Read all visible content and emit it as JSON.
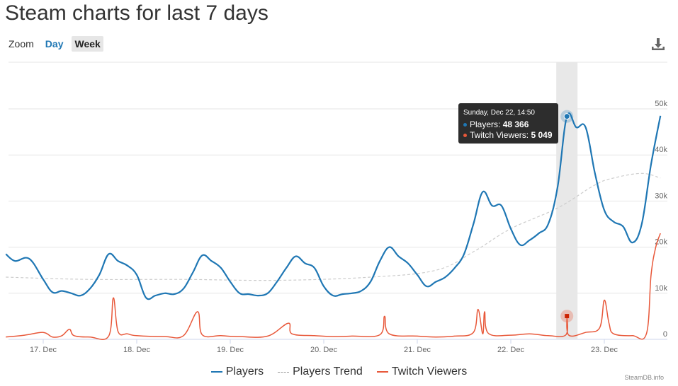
{
  "page": {
    "title": "Steam charts for last 7 days"
  },
  "zoom": {
    "label": "Zoom",
    "options": [
      "Day",
      "Week"
    ],
    "selected": "Week"
  },
  "toolbar": {
    "download_icon": "download-icon"
  },
  "tooltip": {
    "title": "Sunday, Dec 22, 14:50",
    "players_label": "Players: ",
    "players_value": "48 366",
    "twitch_label": "Twitch Viewers: ",
    "twitch_value": "5 049"
  },
  "credit": "SteamDB.info",
  "colors": {
    "players": "#1f77b4",
    "trend": "#cccccc",
    "twitch": "#e8583a",
    "highlight": "#e8e8e8"
  },
  "chart_data": {
    "type": "line",
    "x_tick_labels": [
      "17. Dec",
      "18. Dec",
      "19. Dec",
      "20. Dec",
      "21. Dec",
      "22. Dec",
      "23. Dec"
    ],
    "y_tick_labels": [
      "0",
      "10k",
      "20k",
      "30k",
      "40k",
      "50k"
    ],
    "ylim": [
      0,
      50000
    ],
    "grid": true,
    "legend_placement": "bottom",
    "highlight_x": 5.6,
    "series": [
      {
        "name": "Players",
        "points": [
          [
            -0.4,
            18500
          ],
          [
            -0.3,
            17000
          ],
          [
            -0.15,
            17500
          ],
          [
            0,
            13000
          ],
          [
            0.1,
            10200
          ],
          [
            0.2,
            10500
          ],
          [
            0.3,
            10000
          ],
          [
            0.4,
            9500
          ],
          [
            0.5,
            11000
          ],
          [
            0.6,
            14000
          ],
          [
            0.7,
            18500
          ],
          [
            0.8,
            17000
          ],
          [
            0.9,
            16000
          ],
          [
            1.0,
            14000
          ],
          [
            1.1,
            9000
          ],
          [
            1.2,
            9500
          ],
          [
            1.3,
            10000
          ],
          [
            1.4,
            9800
          ],
          [
            1.5,
            11000
          ],
          [
            1.6,
            14500
          ],
          [
            1.7,
            18200
          ],
          [
            1.8,
            17000
          ],
          [
            1.9,
            15500
          ],
          [
            2.0,
            12500
          ],
          [
            2.1,
            10000
          ],
          [
            2.2,
            9800
          ],
          [
            2.3,
            9500
          ],
          [
            2.4,
            10000
          ],
          [
            2.5,
            12500
          ],
          [
            2.6,
            15500
          ],
          [
            2.7,
            18000
          ],
          [
            2.8,
            16500
          ],
          [
            2.9,
            15500
          ],
          [
            3.0,
            11500
          ],
          [
            3.1,
            9500
          ],
          [
            3.2,
            9800
          ],
          [
            3.3,
            10000
          ],
          [
            3.4,
            10500
          ],
          [
            3.5,
            12500
          ],
          [
            3.6,
            17000
          ],
          [
            3.7,
            20000
          ],
          [
            3.8,
            18000
          ],
          [
            3.9,
            16500
          ],
          [
            4.0,
            14000
          ],
          [
            4.1,
            11500
          ],
          [
            4.2,
            12500
          ],
          [
            4.3,
            13500
          ],
          [
            4.4,
            15500
          ],
          [
            4.5,
            18500
          ],
          [
            4.6,
            25000
          ],
          [
            4.7,
            32000
          ],
          [
            4.8,
            29000
          ],
          [
            4.9,
            29000
          ],
          [
            5.0,
            24000
          ],
          [
            5.1,
            20500
          ],
          [
            5.2,
            21500
          ],
          [
            5.3,
            23000
          ],
          [
            5.4,
            25000
          ],
          [
            5.5,
            33000
          ],
          [
            5.6,
            48366
          ],
          [
            5.7,
            46000
          ],
          [
            5.8,
            46000
          ],
          [
            5.9,
            36000
          ],
          [
            6.0,
            28000
          ],
          [
            6.1,
            25500
          ],
          [
            6.2,
            24500
          ],
          [
            6.3,
            21000
          ],
          [
            6.4,
            25000
          ],
          [
            6.5,
            38000
          ],
          [
            6.6,
            48500
          ]
        ]
      },
      {
        "name": "Players Trend",
        "points": [
          [
            -0.4,
            13500
          ],
          [
            0.5,
            13000
          ],
          [
            1.5,
            13000
          ],
          [
            2.5,
            12800
          ],
          [
            3.5,
            13500
          ],
          [
            4.2,
            15000
          ],
          [
            4.6,
            19000
          ],
          [
            5.0,
            24000
          ],
          [
            5.5,
            28500
          ],
          [
            5.9,
            33500
          ],
          [
            6.1,
            35000
          ],
          [
            6.4,
            36000
          ],
          [
            6.6,
            35000
          ]
        ]
      },
      {
        "name": "Twitch Viewers",
        "points": [
          [
            -0.4,
            500
          ],
          [
            -0.2,
            900
          ],
          [
            0,
            1500
          ],
          [
            0.1,
            500
          ],
          [
            0.2,
            800
          ],
          [
            0.28,
            2200
          ],
          [
            0.33,
            800
          ],
          [
            0.5,
            500
          ],
          [
            0.7,
            700
          ],
          [
            0.75,
            9000
          ],
          [
            0.8,
            1700
          ],
          [
            0.9,
            1200
          ],
          [
            1.0,
            800
          ],
          [
            1.3,
            600
          ],
          [
            1.5,
            800
          ],
          [
            1.65,
            6000
          ],
          [
            1.7,
            1000
          ],
          [
            1.9,
            800
          ],
          [
            2.1,
            600
          ],
          [
            2.4,
            700
          ],
          [
            2.62,
            3500
          ],
          [
            2.66,
            1200
          ],
          [
            2.9,
            800
          ],
          [
            3.1,
            600
          ],
          [
            3.3,
            700
          ],
          [
            3.6,
            1000
          ],
          [
            3.65,
            5000
          ],
          [
            3.7,
            1200
          ],
          [
            4.0,
            700
          ],
          [
            4.2,
            500
          ],
          [
            4.4,
            700
          ],
          [
            4.6,
            1500
          ],
          [
            4.65,
            6500
          ],
          [
            4.7,
            1200
          ],
          [
            4.72,
            6000
          ],
          [
            4.76,
            1300
          ],
          [
            5.0,
            900
          ],
          [
            5.2,
            1200
          ],
          [
            5.4,
            800
          ],
          [
            5.59,
            1000
          ],
          [
            5.6,
            5049
          ],
          [
            5.62,
            900
          ],
          [
            5.8,
            1500
          ],
          [
            5.95,
            2500
          ],
          [
            6.0,
            8500
          ],
          [
            6.05,
            3500
          ],
          [
            6.1,
            1200
          ],
          [
            6.3,
            800
          ],
          [
            6.45,
            1200
          ],
          [
            6.5,
            14000
          ],
          [
            6.55,
            20000
          ],
          [
            6.6,
            23000
          ]
        ]
      }
    ]
  }
}
